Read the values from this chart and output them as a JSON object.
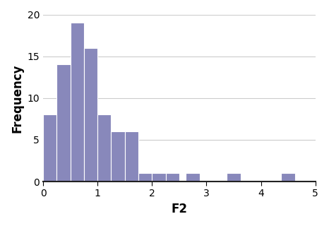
{
  "bar_lefts": [
    0.0,
    0.25,
    0.5,
    0.75,
    1.0,
    1.25,
    1.5,
    1.75,
    2.0,
    2.25,
    2.625,
    3.375,
    4.375
  ],
  "bar_heights": [
    8,
    14,
    19,
    16,
    8,
    6,
    6,
    1,
    1,
    1,
    1,
    1,
    1
  ],
  "bar_width": 0.25,
  "bar_color": "#8888bb",
  "bar_edge_color": "#ffffff",
  "bar_linewidth": 0.8,
  "xlabel": "F2",
  "ylabel": "Frequency",
  "xlim": [
    0,
    5
  ],
  "ylim": [
    0,
    20
  ],
  "xticks": [
    0,
    1,
    2,
    3,
    4,
    5
  ],
  "yticks": [
    0,
    5,
    10,
    15,
    20
  ],
  "grid_color": "#cccccc",
  "grid_linewidth": 0.8,
  "background_color": "#ffffff",
  "xlabel_fontsize": 12,
  "ylabel_fontsize": 12,
  "tick_fontsize": 10
}
